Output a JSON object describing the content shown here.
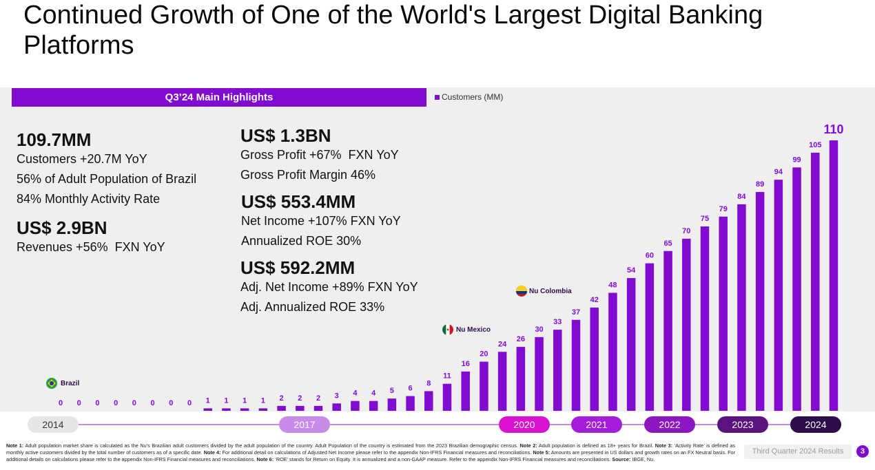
{
  "title": "Continued Growth of One of the World's Largest Digital Banking Platforms",
  "colors": {
    "accent": "#820AD1",
    "panel_background": "#EFEFEF",
    "annotation_text": "#2D0A4E"
  },
  "highlights": {
    "header": "Q3’24 Main Highlights",
    "customers": {
      "value": "109.7MM",
      "lines": [
        "Customers +20.7M YoY",
        "56% of Adult Population of Brazil",
        "84% Monthly Activity Rate"
      ]
    },
    "revenues": {
      "value": "US$ 2.9BN",
      "lines": [
        "Revenues +56%  FXN YoY"
      ]
    },
    "gross_profit": {
      "value": "US$ 1.3BN",
      "lines": [
        "Gross Profit +67%  FXN YoY",
        "Gross Profit Margin 46%"
      ]
    },
    "net_income": {
      "value": "US$ 553.4MM",
      "lines": [
        "Net Income +107% FXN YoY",
        "Annualized ROE 30%"
      ]
    },
    "adj_net_income": {
      "value": "US$ 592.2MM",
      "lines": [
        "Adj. Net Income +89% FXN YoY",
        "Adj. Annualized ROE 33%"
      ]
    }
  },
  "chart_data": {
    "type": "bar",
    "series": [
      {
        "name": "Customers (MM)",
        "values": [
          0,
          0,
          0,
          0,
          0,
          0,
          0,
          0,
          1,
          1,
          1,
          1,
          2,
          2,
          2,
          3,
          4,
          4,
          5,
          6,
          8,
          11,
          16,
          20,
          24,
          26,
          30,
          33,
          37,
          42,
          48,
          54,
          60,
          65,
          70,
          75,
          79,
          84,
          89,
          94,
          99,
          105,
          110
        ]
      }
    ],
    "legend": "top",
    "grid": false,
    "bar_color": "#820AD1",
    "annotations": [
      "Brazil",
      "Nu Mexico",
      "Nu Colombia"
    ],
    "timeline": [
      {
        "label": "2014",
        "color": "#E6E6E6",
        "text_color": "#333333"
      },
      {
        "label": "2017",
        "color": "#C98BE8",
        "text_color": "#FFFFFF"
      },
      {
        "label": "2020",
        "color": "#DA12D2",
        "text_color": "#FFFFFF"
      },
      {
        "label": "2021",
        "color": "#A51BDC",
        "text_color": "#FFFFFF"
      },
      {
        "label": "2022",
        "color": "#8C17C2",
        "text_color": "#FFFFFF"
      },
      {
        "label": "2023",
        "color": "#5C137E",
        "text_color": "#FFFFFF"
      },
      {
        "label": "2024",
        "color": "#2E0B4A",
        "text_color": "#FFFFFF"
      }
    ]
  },
  "footer": {
    "notes": [
      {
        "label": "Note 1:",
        "text": "Adult population market share is calculated as the Nu’s Brazilian adult customers divided by the adult population of the country. Adult Population of the country is estimated from the 2023 Brazilian demographic census."
      },
      {
        "label": "Note 2:",
        "text": "Adult population is defined as 18+ years for Brazil."
      },
      {
        "label": "Note 3:",
        "text": "‘Activity Rate’ is defined as monthly active customers divided by the total number of customers as of a specific date."
      },
      {
        "label": "Note 4:",
        "text": "For additional detail on calculations of Adjusted Net Income please refer to the appendix Non-IFRS Financial measures and reconciliations."
      },
      {
        "label": "Note 5:",
        "text": "Amounts are presented in US dollars and growth rates on an FX Neutral basis. For additional details on calculations please refer to the appendix Non-IFRS Financial measures and reconciliations."
      },
      {
        "label": "Note 6:",
        "text": "‘ROE’ stands for Return on Equity. It is annualized and a non-GAAP measure. Refer to the appendix Non-IFRS Financial measures and reconciliations."
      },
      {
        "label": "Source:",
        "text": "IBGE, Nu."
      }
    ],
    "deck_label": "Third Quarter 2024 Results",
    "page_number": "3"
  }
}
